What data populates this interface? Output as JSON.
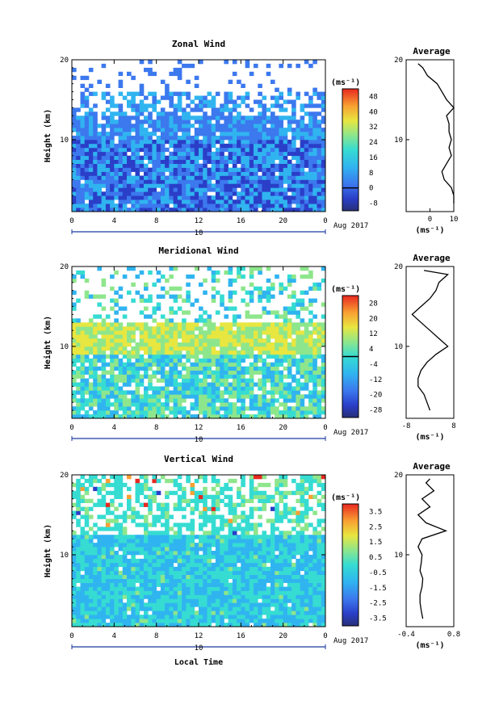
{
  "figure": {
    "xlabel": "Local Time",
    "date_label": "Aug 2017",
    "day_label": "10",
    "ylabel": "Height (km)",
    "avg_title": "Average",
    "unit_label": "(ms⁻¹)",
    "unit_xlabel": "(ms⁻¹)"
  },
  "chart_data": [
    {
      "type": "heatmap",
      "title": "Zonal Wind",
      "xlabel": "Local Time",
      "ylabel": "Height (km)",
      "xlim": [
        0,
        24
      ],
      "ylim": [
        1,
        20
      ],
      "xticks": [
        "0",
        "4",
        "8",
        "12",
        "16",
        "20",
        "0"
      ],
      "yticks": [
        "10",
        "20"
      ],
      "colorbar": {
        "label": "(ms⁻¹)",
        "ticks": [
          "-8",
          "0",
          "8",
          "16",
          "24",
          "32",
          "40",
          "48"
        ],
        "zero_line": 0,
        "range": [
          -12,
          52
        ]
      },
      "profile_levels": [
        {
          "height": 2,
          "value": 10
        },
        {
          "height": 3,
          "value": 10
        },
        {
          "height": 4,
          "value": 9
        },
        {
          "height": 5,
          "value": 6
        },
        {
          "height": 6,
          "value": 5
        },
        {
          "height": 7,
          "value": 7
        },
        {
          "height": 8,
          "value": 9
        },
        {
          "height": 9,
          "value": 8
        },
        {
          "height": 10,
          "value": 9
        },
        {
          "height": 11,
          "value": 8
        },
        {
          "height": 12,
          "value": 8
        },
        {
          "height": 13,
          "value": 7
        },
        {
          "height": 14,
          "value": 10
        },
        {
          "height": 15,
          "value": 7
        },
        {
          "height": 16,
          "value": 5
        },
        {
          "height": 17,
          "value": 3
        },
        {
          "height": 18,
          "value": -1
        },
        {
          "height": 19,
          "value": -3
        },
        {
          "height": 19.5,
          "value": -5
        }
      ],
      "profile": {
        "title": "Average",
        "xlabel": "(ms⁻¹)",
        "xlim": [
          -10,
          10
        ],
        "xticks": [
          "0",
          "10"
        ],
        "yticks": [
          "10",
          "20"
        ]
      }
    },
    {
      "type": "heatmap",
      "title": "Meridional Wind",
      "xlabel": "Local Time",
      "ylabel": "Height (km)",
      "xlim": [
        0,
        24
      ],
      "ylim": [
        1,
        20
      ],
      "xticks": [
        "0",
        "4",
        "8",
        "12",
        "16",
        "20",
        "0"
      ],
      "yticks": [
        "10",
        "20"
      ],
      "colorbar": {
        "label": "(ms⁻¹)",
        "ticks": [
          "-28",
          "-20",
          "-12",
          "-4",
          "4",
          "12",
          "20",
          "28"
        ],
        "zero_line": 0,
        "range": [
          -32,
          32
        ]
      },
      "profile_levels": [
        {
          "height": 2,
          "value": 0
        },
        {
          "height": 3,
          "value": -1
        },
        {
          "height": 4,
          "value": -2
        },
        {
          "height": 5,
          "value": -4
        },
        {
          "height": 6,
          "value": -4
        },
        {
          "height": 7,
          "value": -3
        },
        {
          "height": 8,
          "value": -1
        },
        {
          "height": 9,
          "value": 2
        },
        {
          "height": 10,
          "value": 6
        },
        {
          "height": 11,
          "value": 3
        },
        {
          "height": 12,
          "value": 0
        },
        {
          "height": 13,
          "value": -3
        },
        {
          "height": 14,
          "value": -6
        },
        {
          "height": 15,
          "value": -3
        },
        {
          "height": 16,
          "value": 0
        },
        {
          "height": 17,
          "value": 2
        },
        {
          "height": 18,
          "value": 3
        },
        {
          "height": 19,
          "value": 6
        },
        {
          "height": 19.5,
          "value": -2
        }
      ],
      "profile": {
        "title": "Average",
        "xlabel": "(ms⁻¹)",
        "xlim": [
          -8,
          8
        ],
        "xticks": [
          "-8",
          "8"
        ],
        "yticks": [
          "10",
          "20"
        ]
      }
    },
    {
      "type": "heatmap",
      "title": "Vertical Wind",
      "xlabel": "Local Time",
      "ylabel": "Height (km)",
      "xlim": [
        0,
        24
      ],
      "ylim": [
        1,
        20
      ],
      "xticks": [
        "0",
        "4",
        "8",
        "12",
        "16",
        "20",
        "0"
      ],
      "yticks": [
        "10",
        "20"
      ],
      "colorbar": {
        "label": "(ms⁻¹)",
        "ticks": [
          "-3.5",
          "-2.5",
          "-1.5",
          "-0.5",
          "0.5",
          "1.5",
          "2.5",
          "3.5"
        ],
        "zero_line": null,
        "range": [
          -4,
          4
        ]
      },
      "profile_levels": [
        {
          "height": 2,
          "value": 0.02
        },
        {
          "height": 3,
          "value": -0.02
        },
        {
          "height": 4,
          "value": -0.05
        },
        {
          "height": 5,
          "value": -0.05
        },
        {
          "height": 6,
          "value": 0.0
        },
        {
          "height": 7,
          "value": 0.02
        },
        {
          "height": 8,
          "value": -0.05
        },
        {
          "height": 9,
          "value": -0.02
        },
        {
          "height": 10,
          "value": 0.0
        },
        {
          "height": 11,
          "value": -0.1
        },
        {
          "height": 12,
          "value": 0.0
        },
        {
          "height": 13,
          "value": 0.6
        },
        {
          "height": 14,
          "value": 0.1
        },
        {
          "height": 15,
          "value": -0.1
        },
        {
          "height": 16,
          "value": 0.2
        },
        {
          "height": 17,
          "value": 0.0
        },
        {
          "height": 18,
          "value": 0.3
        },
        {
          "height": 19,
          "value": 0.1
        },
        {
          "height": 19.5,
          "value": 0.2
        }
      ],
      "profile": {
        "title": "Average",
        "xlabel": "(ms⁻¹)",
        "xlim": [
          -0.4,
          0.8
        ],
        "xticks": [
          "-0.4",
          "0.8"
        ],
        "yticks": [
          "10",
          "20"
        ]
      }
    }
  ]
}
